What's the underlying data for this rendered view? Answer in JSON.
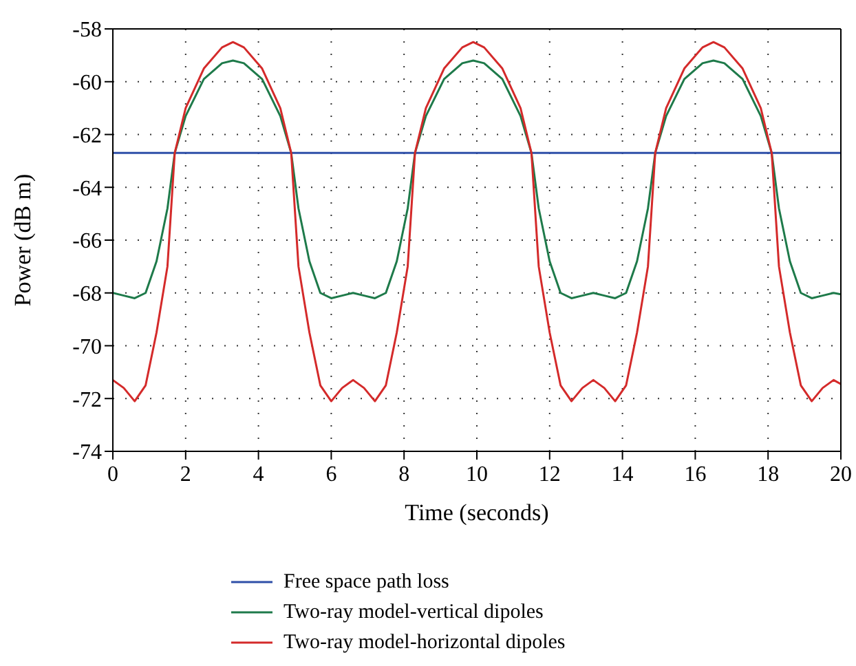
{
  "chart_data": {
    "type": "line",
    "xlabel": "Time (seconds)",
    "ylabel": "Power (dB m)",
    "xlim": [
      0,
      20
    ],
    "xticks": [
      0,
      2,
      4,
      6,
      8,
      10,
      12,
      14,
      16,
      18,
      20
    ],
    "ylim": [
      -74,
      -58
    ],
    "yticks": [
      -74,
      -72,
      -70,
      -68,
      -66,
      -64,
      -62,
      -60,
      -58
    ],
    "grid": true,
    "legend": "bottom",
    "marker": "none",
    "line_style": "solid",
    "series": [
      {
        "name": "Free space path loss",
        "color": "#2e4fa8",
        "x": [
          0,
          20
        ],
        "values": [
          -62.7,
          -62.7
        ]
      },
      {
        "name": "Two-ray model-vertical dipoles",
        "color": "#1e7a4a",
        "x": [
          0,
          0.3,
          0.6,
          0.9,
          1.2,
          1.5,
          1.7,
          2.0,
          2.5,
          3.0,
          3.3,
          3.6,
          4.1,
          4.6,
          4.9,
          5.1,
          5.4,
          5.7,
          6.0,
          6.3,
          6.6,
          6.9,
          7.2,
          7.5,
          7.8,
          8.1,
          8.3,
          8.6,
          9.1,
          9.6,
          9.9,
          10.2,
          10.7,
          11.2,
          11.5,
          11.7,
          12.0,
          12.3,
          12.6,
          12.9,
          13.2,
          13.5,
          13.8,
          14.1,
          14.4,
          14.7,
          14.9,
          15.2,
          15.7,
          16.2,
          16.5,
          16.8,
          17.3,
          17.8,
          18.1,
          18.3,
          18.6,
          18.9,
          19.2,
          19.5,
          19.8,
          20
        ],
        "values": [
          -68.0,
          -68.1,
          -68.2,
          -68.0,
          -66.8,
          -64.8,
          -62.7,
          -61.3,
          -59.9,
          -59.3,
          -59.2,
          -59.3,
          -59.9,
          -61.3,
          -62.7,
          -64.8,
          -66.8,
          -68.0,
          -68.2,
          -68.1,
          -68.0,
          -68.1,
          -68.2,
          -68.0,
          -66.8,
          -64.8,
          -62.7,
          -61.3,
          -59.9,
          -59.3,
          -59.2,
          -59.3,
          -59.9,
          -61.3,
          -62.7,
          -64.8,
          -66.8,
          -68.0,
          -68.2,
          -68.1,
          -68.0,
          -68.1,
          -68.2,
          -68.0,
          -66.8,
          -64.8,
          -62.7,
          -61.3,
          -59.9,
          -59.3,
          -59.2,
          -59.3,
          -59.9,
          -61.3,
          -62.7,
          -64.8,
          -66.8,
          -68.0,
          -68.2,
          -68.1,
          -68.0,
          -68.05
        ]
      },
      {
        "name": "Two-ray model-horizontal dipoles",
        "color": "#d42a2a",
        "x": [
          0,
          0.3,
          0.6,
          0.9,
          1.2,
          1.5,
          1.7,
          2.0,
          2.5,
          3.0,
          3.3,
          3.6,
          4.1,
          4.6,
          4.9,
          5.1,
          5.4,
          5.7,
          6.0,
          6.3,
          6.6,
          6.9,
          7.2,
          7.5,
          7.8,
          8.1,
          8.3,
          8.6,
          9.1,
          9.6,
          9.9,
          10.2,
          10.7,
          11.2,
          11.5,
          11.7,
          12.0,
          12.3,
          12.6,
          12.9,
          13.2,
          13.5,
          13.8,
          14.1,
          14.4,
          14.7,
          14.9,
          15.2,
          15.7,
          16.2,
          16.5,
          16.8,
          17.3,
          17.8,
          18.1,
          18.3,
          18.6,
          18.9,
          19.2,
          19.5,
          19.8,
          20
        ],
        "values": [
          -71.3,
          -71.6,
          -72.1,
          -71.5,
          -69.5,
          -67.0,
          -62.7,
          -61.0,
          -59.5,
          -58.7,
          -58.5,
          -58.7,
          -59.5,
          -61.0,
          -62.7,
          -67.0,
          -69.5,
          -71.5,
          -72.1,
          -71.6,
          -71.3,
          -71.6,
          -72.1,
          -71.5,
          -69.5,
          -67.0,
          -62.7,
          -61.0,
          -59.5,
          -58.7,
          -58.5,
          -58.7,
          -59.5,
          -61.0,
          -62.7,
          -67.0,
          -69.5,
          -71.5,
          -72.1,
          -71.6,
          -71.3,
          -71.6,
          -72.1,
          -71.5,
          -69.5,
          -67.0,
          -62.7,
          -61.0,
          -59.5,
          -58.7,
          -58.5,
          -58.7,
          -59.5,
          -61.0,
          -62.7,
          -67.0,
          -69.5,
          -71.5,
          -72.1,
          -71.6,
          -71.3,
          -71.45
        ]
      }
    ]
  }
}
